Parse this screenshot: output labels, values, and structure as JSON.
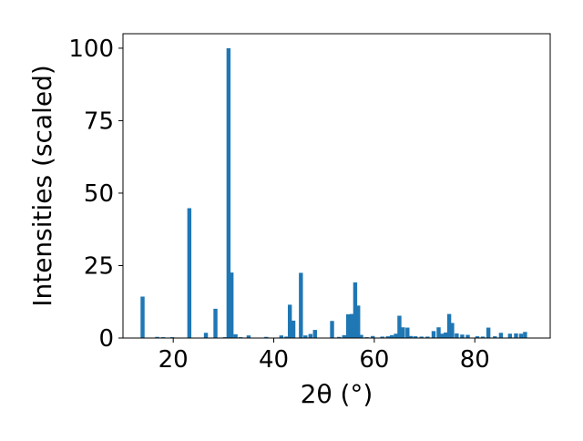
{
  "chart_data": {
    "type": "bar",
    "title": "",
    "xlabel": "2θ (°)",
    "ylabel": "Intensities (scaled)",
    "xlim": [
      10,
      95
    ],
    "ylim": [
      0,
      105
    ],
    "x_ticks": [
      20,
      40,
      60,
      80
    ],
    "y_ticks": [
      0,
      25,
      50,
      75,
      100
    ],
    "x_tick_labels": [
      "20",
      "40",
      "60",
      "80"
    ],
    "y_tick_labels": [
      "0",
      "25",
      "50",
      "75",
      "100"
    ],
    "grid": false,
    "legend": "none",
    "bar_width": 0.8,
    "bar_color": "#1f77b4",
    "x": [
      13.9,
      16.8,
      18.0,
      19.8,
      23.2,
      26.5,
      28.4,
      30.3,
      31.0,
      31.6,
      32.4,
      33.4,
      35.0,
      38.5,
      41.5,
      42.5,
      43.2,
      43.9,
      45.4,
      46.3,
      47.3,
      48.2,
      51.6,
      53.0,
      54.0,
      54.8,
      55.5,
      56.2,
      56.8,
      57.4,
      58.5,
      59.7,
      61.6,
      62.7,
      63.5,
      64.3,
      65.0,
      65.7,
      66.6,
      67.3,
      68.2,
      69.4,
      70.6,
      71.8,
      72.8,
      73.4,
      74.2,
      74.9,
      75.5,
      76.4,
      77.5,
      78.6,
      80.5,
      81.6,
      82.7,
      84.0,
      85.2,
      87.0,
      88.2,
      89.2,
      90.0
    ],
    "values": [
      14.3,
      0.4,
      0.3,
      0.3,
      44.8,
      1.8,
      10.1,
      0.3,
      100,
      22.6,
      1.3,
      0.3,
      0.9,
      0.4,
      0.9,
      0.5,
      11.5,
      6.0,
      22.5,
      0.9,
      1.4,
      2.8,
      5.9,
      0.4,
      1.0,
      8.2,
      8.3,
      19.2,
      11.2,
      1.1,
      0.3,
      0.7,
      0.5,
      0.6,
      1.0,
      1.5,
      7.7,
      3.7,
      3.6,
      0.7,
      0.6,
      0.5,
      0.5,
      2.4,
      3.7,
      1.5,
      1.9,
      8.3,
      5.2,
      1.6,
      1.2,
      1.1,
      0.6,
      0.5,
      3.6,
      0.6,
      1.8,
      1.5,
      1.6,
      1.5,
      2.1
    ]
  }
}
